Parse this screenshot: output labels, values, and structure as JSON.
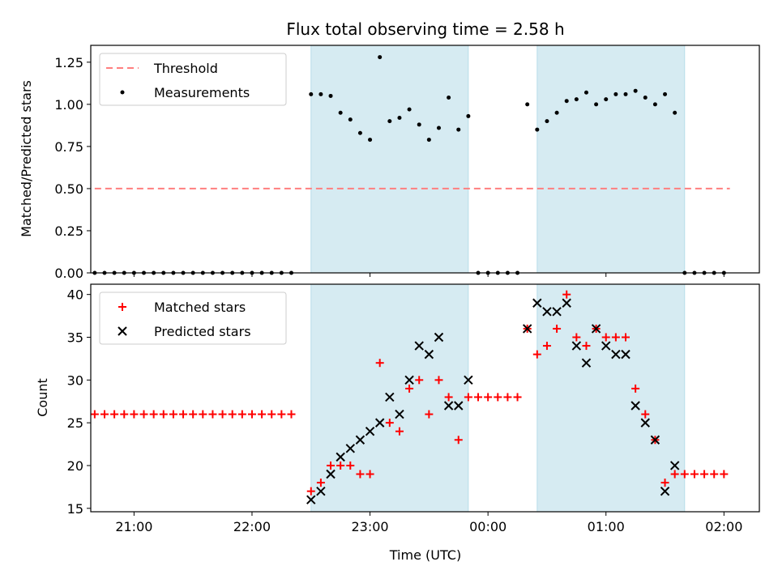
{
  "chart_data": [
    {
      "type": "scatter",
      "title": "Flux total observing time = 2.58 h",
      "ylabel": "Matched/Predicted stars",
      "xlabel": "",
      "xlim": [
        "20:38",
        "02:18"
      ],
      "ylim": [
        0,
        1.35
      ],
      "yticks": [
        "0.00",
        "0.25",
        "0.50",
        "0.75",
        "1.00",
        "1.25"
      ],
      "grid": false,
      "legend_position": "top-left",
      "shaded_regions": [
        [
          "22:30",
          "23:50"
        ],
        [
          "00:25",
          "01:40"
        ]
      ],
      "series": [
        {
          "name": "Threshold",
          "kind": "dashed-line",
          "color": "#ff7f7f",
          "x": [
            "20:40",
            "02:03"
          ],
          "y": [
            0.5,
            0.5
          ]
        },
        {
          "name": "Measurements",
          "kind": "dots",
          "color": "#000000",
          "x": [
            "20:40",
            "20:45",
            "20:50",
            "20:55",
            "21:00",
            "21:05",
            "21:10",
            "21:15",
            "21:20",
            "21:25",
            "21:30",
            "21:35",
            "21:40",
            "21:45",
            "21:50",
            "21:55",
            "22:00",
            "22:05",
            "22:10",
            "22:15",
            "22:20",
            "22:30",
            "22:35",
            "22:40",
            "22:45",
            "22:50",
            "22:55",
            "23:00",
            "23:05",
            "23:10",
            "23:15",
            "23:20",
            "23:25",
            "23:30",
            "23:35",
            "23:40",
            "23:45",
            "23:50",
            "23:55",
            "00:00",
            "00:05",
            "00:10",
            "00:15",
            "00:20",
            "00:25",
            "00:30",
            "00:35",
            "00:40",
            "00:45",
            "00:50",
            "00:55",
            "01:00",
            "01:05",
            "01:10",
            "01:15",
            "01:20",
            "01:25",
            "01:30",
            "01:35",
            "01:40",
            "01:45",
            "01:50",
            "01:55",
            "02:00"
          ],
          "y": [
            0,
            0,
            0,
            0,
            0,
            0,
            0,
            0,
            0,
            0,
            0,
            0,
            0,
            0,
            0,
            0,
            0,
            0,
            0,
            0,
            0,
            1.06,
            1.06,
            1.05,
            0.95,
            0.91,
            0.83,
            0.79,
            1.28,
            0.9,
            0.92,
            0.97,
            0.88,
            0.79,
            0.86,
            1.04,
            0.85,
            0.93,
            0,
            0,
            0,
            0,
            0,
            1.0,
            0.85,
            0.9,
            0.95,
            1.02,
            1.03,
            1.07,
            1.0,
            1.03,
            1.06,
            1.06,
            1.08,
            1.04,
            1.0,
            1.06,
            0.95,
            0,
            0,
            0,
            0,
            0
          ]
        }
      ]
    },
    {
      "type": "scatter",
      "title": "",
      "ylabel": "Count",
      "xlabel": "Time (UTC)",
      "xlim": [
        "20:38",
        "02:18"
      ],
      "ylim": [
        14.6,
        41.2
      ],
      "yticks": [
        "15",
        "20",
        "25",
        "30",
        "35",
        "40"
      ],
      "xticks": [
        "21:00",
        "22:00",
        "23:00",
        "00:00",
        "01:00",
        "02:00"
      ],
      "grid": false,
      "legend_position": "top-left",
      "shaded_regions": [
        [
          "22:30",
          "23:50"
        ],
        [
          "00:25",
          "01:40"
        ]
      ],
      "series": [
        {
          "name": "Matched stars",
          "kind": "plus",
          "color": "#ff0000",
          "x": [
            "20:40",
            "20:45",
            "20:50",
            "20:55",
            "21:00",
            "21:05",
            "21:10",
            "21:15",
            "21:20",
            "21:25",
            "21:30",
            "21:35",
            "21:40",
            "21:45",
            "21:50",
            "21:55",
            "22:00",
            "22:05",
            "22:10",
            "22:15",
            "22:20",
            "22:30",
            "22:35",
            "22:40",
            "22:45",
            "22:50",
            "22:55",
            "23:00",
            "23:05",
            "23:10",
            "23:15",
            "23:20",
            "23:25",
            "23:30",
            "23:35",
            "23:40",
            "23:45",
            "23:50",
            "23:55",
            "00:00",
            "00:05",
            "00:10",
            "00:15",
            "00:20",
            "00:25",
            "00:30",
            "00:35",
            "00:40",
            "00:45",
            "00:50",
            "00:55",
            "01:00",
            "01:05",
            "01:10",
            "01:15",
            "01:20",
            "01:25",
            "01:30",
            "01:35",
            "01:40",
            "01:45",
            "01:50",
            "01:55",
            "02:00"
          ],
          "y": [
            26,
            26,
            26,
            26,
            26,
            26,
            26,
            26,
            26,
            26,
            26,
            26,
            26,
            26,
            26,
            26,
            26,
            26,
            26,
            26,
            26,
            17,
            18,
            20,
            20,
            20,
            19,
            19,
            32,
            25,
            24,
            29,
            30,
            26,
            30,
            28,
            23,
            28,
            28,
            28,
            28,
            28,
            28,
            36,
            33,
            34,
            36,
            40,
            35,
            34,
            36,
            35,
            35,
            35,
            29,
            26,
            23,
            18,
            19,
            19,
            19,
            19,
            19,
            19
          ]
        },
        {
          "name": "Predicted stars",
          "kind": "cross",
          "color": "#000000",
          "x": [
            "22:30",
            "22:35",
            "22:40",
            "22:45",
            "22:50",
            "22:55",
            "23:00",
            "23:05",
            "23:10",
            "23:15",
            "23:20",
            "23:25",
            "23:30",
            "23:35",
            "23:40",
            "23:45",
            "23:50",
            "00:20",
            "00:25",
            "00:30",
            "00:35",
            "00:40",
            "00:45",
            "00:50",
            "00:55",
            "01:00",
            "01:05",
            "01:10",
            "01:15",
            "01:20",
            "01:25",
            "01:30",
            "01:35"
          ],
          "y": [
            16,
            17,
            19,
            21,
            22,
            23,
            24,
            25,
            28,
            26,
            30,
            34,
            33,
            35,
            27,
            27,
            30,
            36,
            39,
            38,
            38,
            39,
            34,
            32,
            36,
            34,
            33,
            33,
            27,
            25,
            23,
            17,
            20
          ]
        }
      ]
    }
  ]
}
